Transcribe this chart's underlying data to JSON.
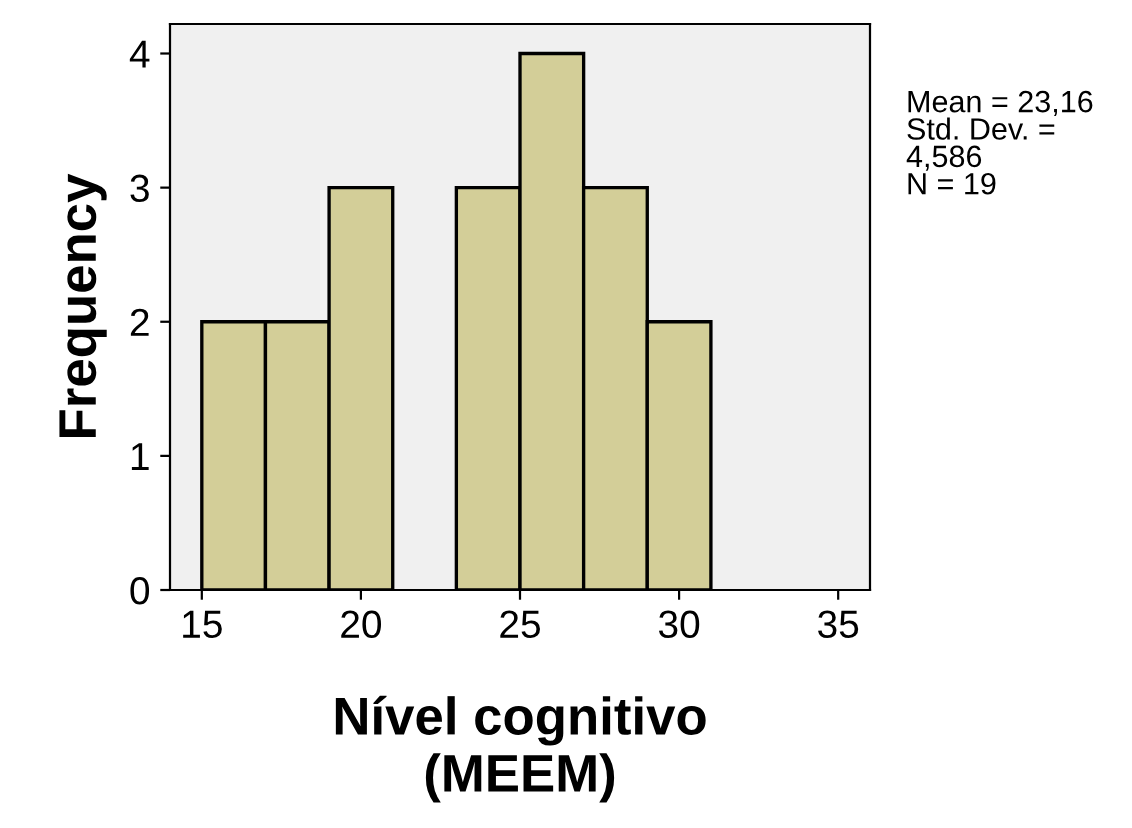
{
  "chart_data": {
    "type": "histogram",
    "bins": [
      15,
      17,
      19,
      21,
      23,
      25,
      27,
      29,
      31
    ],
    "values": [
      2,
      2,
      3,
      0,
      3,
      4,
      3,
      2
    ],
    "color": "#d3ce98",
    "xlabel": "Nível cognitivo\n(MEEM)",
    "ylabel": "Frequency",
    "xlim": [
      14,
      36
    ],
    "xticks": [
      15,
      20,
      25,
      30,
      35
    ],
    "ylim": [
      0,
      4.22
    ],
    "yticks": [
      0,
      1,
      2,
      3,
      4
    ],
    "annotations": [
      "Mean = 23,16\nStd. Dev. =\n4,586\nN = 19"
    ],
    "grid": false
  }
}
